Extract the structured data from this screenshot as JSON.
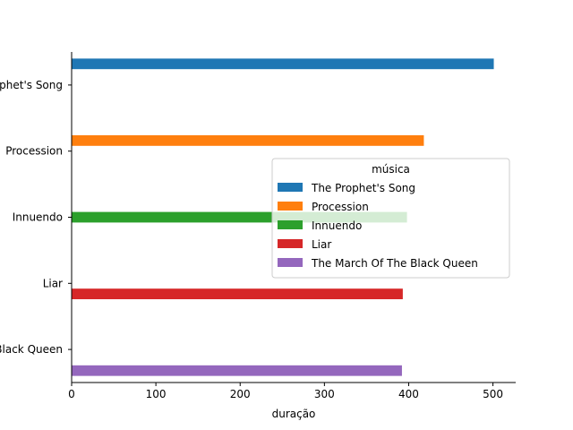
{
  "chart_data": {
    "type": "bar",
    "orientation": "horizontal",
    "categories": [
      "The Prophet's Song",
      "Procession",
      "Innuendo",
      "Liar",
      "The March Of The Black Queen"
    ],
    "series": [
      {
        "name": "The Prophet's Song",
        "values": [
          501,
          null,
          null,
          null,
          null
        ],
        "color": "#1f77b4"
      },
      {
        "name": "Procession",
        "values": [
          null,
          418,
          null,
          null,
          null
        ],
        "color": "#ff7f0e"
      },
      {
        "name": "Innuendo",
        "values": [
          null,
          null,
          398,
          null,
          null
        ],
        "color": "#2ca02c"
      },
      {
        "name": "Liar",
        "values": [
          null,
          null,
          null,
          393,
          null
        ],
        "color": "#d62728"
      },
      {
        "name": "The March Of The Black Queen",
        "values": [
          null,
          null,
          null,
          null,
          392
        ],
        "color": "#9467bd"
      }
    ],
    "xlabel": "duração",
    "ylabel": "",
    "xlim": [
      0,
      527
    ],
    "xticks": [
      0,
      100,
      200,
      300,
      400,
      500
    ],
    "legend": {
      "title": "música",
      "placement": "center-right"
    },
    "grid": false
  }
}
